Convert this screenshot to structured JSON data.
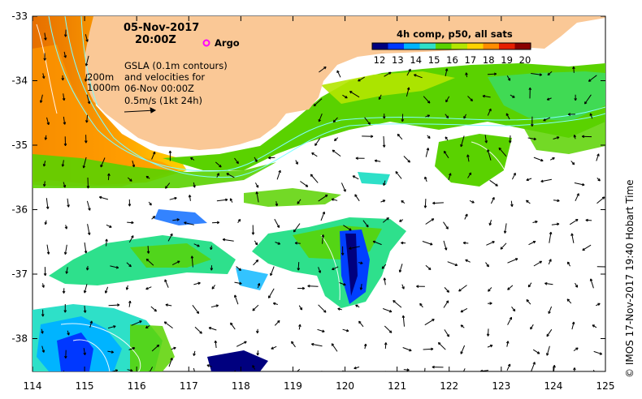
{
  "map": {
    "date": "05-Nov-2017",
    "time": "20:00Z",
    "argo_label": "Argo",
    "depth_contours": [
      "200m",
      "1000m"
    ],
    "gsla_text": [
      "GSLA (0.1m contours)",
      "and velocities for",
      "06-Nov 00:00Z",
      "0.5m/s (1kt 24h)"
    ],
    "colorbar_title": "4h comp, p50, all sats",
    "colorbar_ticks": [
      "12",
      "13",
      "14",
      "15",
      "16",
      "17",
      "18",
      "19",
      "20"
    ],
    "colorbar_colors": [
      "#00007f",
      "#0038ff",
      "#00b4ff",
      "#2ee0c8",
      "#5ad200",
      "#b4e600",
      "#ffd200",
      "#ff8c00",
      "#e61e00",
      "#8b0000"
    ],
    "lon_ticks": [
      "114",
      "115",
      "116",
      "117",
      "118",
      "119",
      "120",
      "121",
      "122",
      "123",
      "124",
      "125"
    ],
    "lat_ticks": [
      "-33",
      "-34",
      "-35",
      "-36",
      "-37",
      "-38"
    ],
    "credit": "© IMOS 17-Nov-2017 19:40 Hobart Time",
    "colors": {
      "land": "#fac896",
      "background": "#ffffff",
      "argo": "#ff00ff",
      "contour": "#7fffff"
    }
  }
}
